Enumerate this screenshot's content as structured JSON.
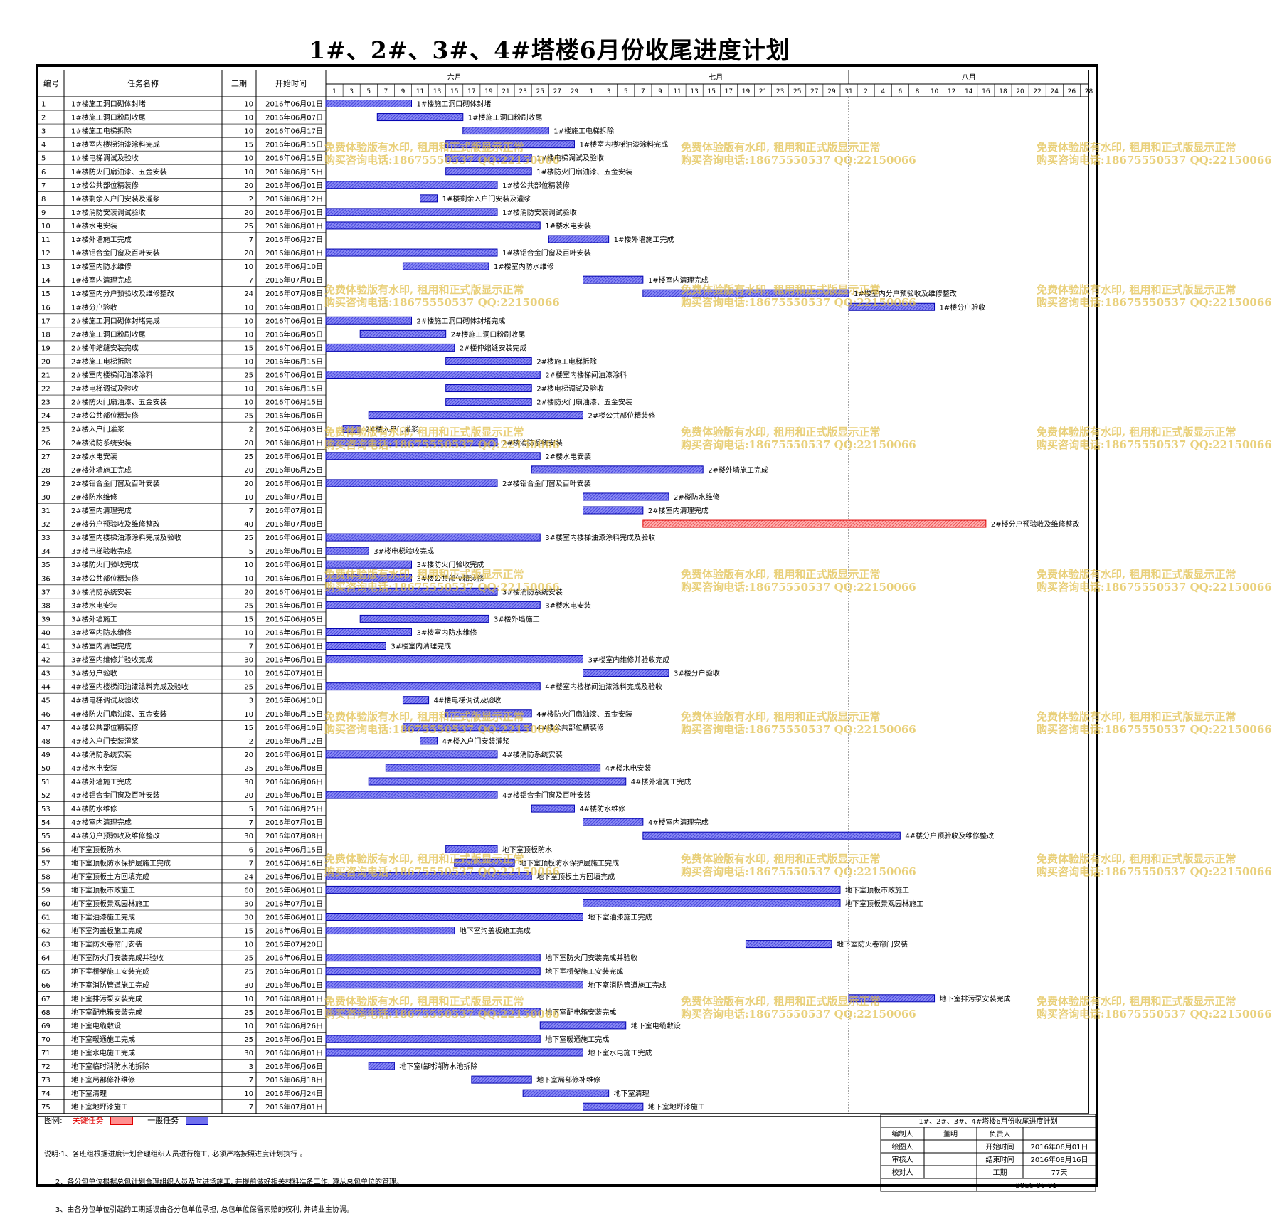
{
  "title": "1#、2#、3#、4#塔楼6月份收尾进度计划",
  "headers": {
    "id": "编号",
    "name": "任务名称",
    "duration": "工期",
    "start": "开始时间"
  },
  "months": [
    "六月",
    "七月",
    "八月"
  ],
  "day_ticks": {
    "june": [
      "1",
      "3",
      "5",
      "7",
      "9",
      "11",
      "13",
      "15",
      "17",
      "19",
      "21",
      "23",
      "25",
      "27",
      "29"
    ],
    "july": [
      "1",
      "3",
      "5",
      "7",
      "9",
      "11",
      "13",
      "15",
      "17",
      "19",
      "21",
      "23",
      "25",
      "27",
      "29",
      "31"
    ],
    "august": [
      "2",
      "4",
      "6",
      "8",
      "10",
      "12",
      "14",
      "16",
      "18",
      "20",
      "22",
      "24",
      "26",
      "28"
    ]
  },
  "chart_data": {
    "type": "gantt",
    "x_axis": {
      "start": "2016-06-01",
      "end": "2016-08-29",
      "unit": "day"
    },
    "critical_color": "#e00000",
    "normal_color": "#4040dd",
    "tasks": [
      {
        "id": "1",
        "name": "1#楼施工洞口砌体封堵",
        "duration": "10",
        "start": "2016年06月01日",
        "critical": false
      },
      {
        "id": "2",
        "name": "1#楼施工洞口粉刷收尾",
        "duration": "10",
        "start": "2016年06月07日",
        "critical": false
      },
      {
        "id": "3",
        "name": "1#楼施工电梯拆除",
        "duration": "10",
        "start": "2016年06月17日",
        "critical": false
      },
      {
        "id": "4",
        "name": "1#楼室内楼梯油漆涂料完成",
        "duration": "15",
        "start": "2016年06月15日",
        "critical": false
      },
      {
        "id": "5",
        "name": "1#楼电梯调试及验收",
        "duration": "10",
        "start": "2016年06月15日",
        "critical": false
      },
      {
        "id": "6",
        "name": "1#楼防火门扇油漆、五金安装",
        "duration": "10",
        "start": "2016年06月15日",
        "critical": false
      },
      {
        "id": "7",
        "name": "1#楼公共部位精装修",
        "duration": "20",
        "start": "2016年06月01日",
        "critical": false
      },
      {
        "id": "8",
        "name": "1#楼剩余入户门安装及灌浆",
        "duration": "2",
        "start": "2016年06月12日",
        "critical": false
      },
      {
        "id": "9",
        "name": "1#楼消防安装调试验收",
        "duration": "20",
        "start": "2016年06月01日",
        "critical": false
      },
      {
        "id": "10",
        "name": "1#楼水电安装",
        "duration": "25",
        "start": "2016年06月01日",
        "critical": false
      },
      {
        "id": "11",
        "name": "1#楼外墙施工完成",
        "duration": "7",
        "start": "2016年06月27日",
        "critical": false
      },
      {
        "id": "12",
        "name": "1#楼铝合金门窗及百叶安装",
        "duration": "20",
        "start": "2016年06月01日",
        "critical": false
      },
      {
        "id": "13",
        "name": "1#楼室内防水维修",
        "duration": "10",
        "start": "2016年06月10日",
        "critical": false
      },
      {
        "id": "14",
        "name": "1#楼室内清理完成",
        "duration": "7",
        "start": "2016年07月01日",
        "critical": false
      },
      {
        "id": "15",
        "name": "1#楼室内分户预验收及维修整改",
        "duration": "24",
        "start": "2016年07月08日",
        "critical": false
      },
      {
        "id": "16",
        "name": "1#楼分户验收",
        "duration": "10",
        "start": "2016年08月01日",
        "critical": false
      },
      {
        "id": "17",
        "name": "2#楼施工洞口砌体封堵完成",
        "duration": "10",
        "start": "2016年06月01日",
        "critical": false
      },
      {
        "id": "18",
        "name": "2#楼施工洞口粉刷收尾",
        "duration": "10",
        "start": "2016年06月05日",
        "critical": false
      },
      {
        "id": "19",
        "name": "2#楼伸缩缝安装完成",
        "duration": "15",
        "start": "2016年06月01日",
        "critical": false
      },
      {
        "id": "20",
        "name": "2#楼施工电梯拆除",
        "duration": "10",
        "start": "2016年06月15日",
        "critical": false
      },
      {
        "id": "21",
        "name": "2#楼室内楼梯间油漆涂料",
        "duration": "25",
        "start": "2016年06月01日",
        "critical": false
      },
      {
        "id": "22",
        "name": "2#楼电梯调试及验收",
        "duration": "10",
        "start": "2016年06月15日",
        "critical": false
      },
      {
        "id": "23",
        "name": "2#楼防火门扇油漆、五金安装",
        "duration": "10",
        "start": "2016年06月15日",
        "critical": false
      },
      {
        "id": "24",
        "name": "2#楼公共部位精装修",
        "duration": "25",
        "start": "2016年06月06日",
        "critical": false
      },
      {
        "id": "25",
        "name": "2#楼入户门灌浆",
        "duration": "2",
        "start": "2016年06月03日",
        "critical": false
      },
      {
        "id": "26",
        "name": "2#楼消防系统安装",
        "duration": "20",
        "start": "2016年06月01日",
        "critical": false
      },
      {
        "id": "27",
        "name": "2#楼水电安装",
        "duration": "25",
        "start": "2016年06月01日",
        "critical": false
      },
      {
        "id": "28",
        "name": "2#楼外墙施工完成",
        "duration": "20",
        "start": "2016年06月25日",
        "critical": false
      },
      {
        "id": "29",
        "name": "2#楼铝合金门窗及百叶安装",
        "duration": "20",
        "start": "2016年06月01日",
        "critical": false
      },
      {
        "id": "30",
        "name": "2#楼防水维修",
        "duration": "10",
        "start": "2016年07月01日",
        "critical": false
      },
      {
        "id": "31",
        "name": "2#楼室内清理完成",
        "duration": "7",
        "start": "2016年07月01日",
        "critical": false
      },
      {
        "id": "32",
        "name": "2#楼分户预验收及维修整改",
        "duration": "40",
        "start": "2016年07月08日",
        "critical": true
      },
      {
        "id": "33",
        "name": "3#楼室内楼梯油漆涂料完成及验收",
        "duration": "25",
        "start": "2016年06月01日",
        "critical": false
      },
      {
        "id": "34",
        "name": "3#楼电梯验收完成",
        "duration": "5",
        "start": "2016年06月01日",
        "critical": false
      },
      {
        "id": "35",
        "name": "3#楼防火门验收完成",
        "duration": "10",
        "start": "2016年06月01日",
        "critical": false
      },
      {
        "id": "36",
        "name": "3#楼公共部位精装修",
        "duration": "10",
        "start": "2016年06月01日",
        "critical": false
      },
      {
        "id": "37",
        "name": "3#楼消防系统安装",
        "duration": "20",
        "start": "2016年06月01日",
        "critical": false
      },
      {
        "id": "38",
        "name": "3#楼水电安装",
        "duration": "25",
        "start": "2016年06月01日",
        "critical": false
      },
      {
        "id": "39",
        "name": "3#楼外墙施工",
        "duration": "15",
        "start": "2016年06月05日",
        "critical": false
      },
      {
        "id": "40",
        "name": "3#楼室内防水维修",
        "duration": "10",
        "start": "2016年06月01日",
        "critical": false
      },
      {
        "id": "41",
        "name": "3#楼室内清理完成",
        "duration": "7",
        "start": "2016年06月01日",
        "critical": false
      },
      {
        "id": "42",
        "name": "3#楼室内维修并验收完成",
        "duration": "30",
        "start": "2016年06月01日",
        "critical": false
      },
      {
        "id": "43",
        "name": "3#楼分户验收",
        "duration": "10",
        "start": "2016年07月01日",
        "critical": false
      },
      {
        "id": "44",
        "name": "4#楼室内楼梯间油漆涂料完成及验收",
        "duration": "25",
        "start": "2016年06月01日",
        "critical": false
      },
      {
        "id": "45",
        "name": "4#楼电梯调试及验收",
        "duration": "3",
        "start": "2016年06月10日",
        "critical": false
      },
      {
        "id": "46",
        "name": "4#楼防火门扇油漆、五金安装",
        "duration": "10",
        "start": "2016年06月15日",
        "critical": false
      },
      {
        "id": "47",
        "name": "4#楼公共部位精装修",
        "duration": "15",
        "start": "2016年06月10日",
        "critical": false
      },
      {
        "id": "48",
        "name": "4#楼入户门安装灌浆",
        "duration": "2",
        "start": "2016年06月12日",
        "critical": false
      },
      {
        "id": "49",
        "name": "4#楼消防系统安装",
        "duration": "20",
        "start": "2016年06月01日",
        "critical": false
      },
      {
        "id": "50",
        "name": "4#楼水电安装",
        "duration": "25",
        "start": "2016年06月08日",
        "critical": false
      },
      {
        "id": "51",
        "name": "4#楼外墙施工完成",
        "duration": "30",
        "start": "2016年06月06日",
        "critical": false
      },
      {
        "id": "52",
        "name": "4#楼铝合金门窗及百叶安装",
        "duration": "20",
        "start": "2016年06月01日",
        "critical": false
      },
      {
        "id": "53",
        "name": "4#楼防水维修",
        "duration": "5",
        "start": "2016年06月25日",
        "critical": false
      },
      {
        "id": "54",
        "name": "4#楼室内清理完成",
        "duration": "7",
        "start": "2016年07月01日",
        "critical": false
      },
      {
        "id": "55",
        "name": "4#楼分户预验收及维修整改",
        "duration": "30",
        "start": "2016年07月08日",
        "critical": false
      },
      {
        "id": "56",
        "name": "地下室顶板防水",
        "duration": "6",
        "start": "2016年06月15日",
        "critical": false
      },
      {
        "id": "57",
        "name": "地下室顶板防水保护层施工完成",
        "duration": "7",
        "start": "2016年06月16日",
        "critical": false
      },
      {
        "id": "58",
        "name": "地下室顶板土方回填完成",
        "duration": "24",
        "start": "2016年06月01日",
        "critical": false
      },
      {
        "id": "59",
        "name": "地下室顶板市政施工",
        "duration": "60",
        "start": "2016年06月01日",
        "critical": false
      },
      {
        "id": "60",
        "name": "地下室顶板景观园林施工",
        "duration": "30",
        "start": "2016年07月01日",
        "critical": false
      },
      {
        "id": "61",
        "name": "地下室油漆施工完成",
        "duration": "30",
        "start": "2016年06月01日",
        "critical": false
      },
      {
        "id": "62",
        "name": "地下室沟盖板施工完成",
        "duration": "15",
        "start": "2016年06月01日",
        "critical": false
      },
      {
        "id": "63",
        "name": "地下室防火卷帘门安装",
        "duration": "10",
        "start": "2016年07月20日",
        "critical": false
      },
      {
        "id": "64",
        "name": "地下室防火门安装完成并验收",
        "duration": "25",
        "start": "2016年06月01日",
        "critical": false
      },
      {
        "id": "65",
        "name": "地下室桥架施工安装完成",
        "duration": "25",
        "start": "2016年06月01日",
        "critical": false
      },
      {
        "id": "66",
        "name": "地下室消防管道施工完成",
        "duration": "30",
        "start": "2016年06月01日",
        "critical": false
      },
      {
        "id": "67",
        "name": "地下室排污泵安装完成",
        "duration": "10",
        "start": "2016年08月01日",
        "critical": false
      },
      {
        "id": "68",
        "name": "地下室配电箱安装完成",
        "duration": "25",
        "start": "2016年06月01日",
        "critical": false
      },
      {
        "id": "69",
        "name": "地下室电缆敷设",
        "duration": "10",
        "start": "2016年06月26日",
        "critical": false
      },
      {
        "id": "70",
        "name": "地下室暖通施工完成",
        "duration": "25",
        "start": "2016年06月01日",
        "critical": false
      },
      {
        "id": "71",
        "name": "地下室水电施工完成",
        "duration": "30",
        "start": "2016年06月01日",
        "critical": false
      },
      {
        "id": "72",
        "name": "地下室临时消防水池拆除",
        "duration": "3",
        "start": "2016年06月06日",
        "critical": false
      },
      {
        "id": "73",
        "name": "地下室局部修补维修",
        "duration": "7",
        "start": "2016年06月18日",
        "critical": false
      },
      {
        "id": "74",
        "name": "地下室清理",
        "duration": "10",
        "start": "2016年06月24日",
        "critical": false
      },
      {
        "id": "75",
        "name": "地下室地坪漆施工",
        "duration": "7",
        "start": "2016年07月01日",
        "critical": false
      }
    ]
  },
  "legend": {
    "label": "图例:",
    "critical": "关键任务",
    "normal": "一般任务"
  },
  "notes": [
    "说明:1、各班组根据进度计划合理组织人员进行施工, 必须严格按照进度计划执行 。",
    "     2、各分包单位根据总包计划合理组织人员及时进场施工, 并提前做好相关材料准备工作, 遵从总包单位的管理。",
    "     3、由各分包单位引起的工期延误由各分包单位承担, 总包单位保留索赔的权利, 并请业主协调。"
  ],
  "titleblock": {
    "title": "1#、2#、3#、4#塔楼6月份收尾进度计划",
    "compiler_label": "编制人",
    "compiler": "董明",
    "leader_label": "负责人",
    "leader": "",
    "drawer_label": "绘图人",
    "drawer": "",
    "start_label": "开始时间",
    "start": "2016年06月01日",
    "reviewer_label": "审核人",
    "reviewer": "",
    "end_label": "结束时间",
    "end": "2016年08月16日",
    "checker_label": "校对人",
    "checker": "",
    "duration_label": "工期",
    "duration": "77天",
    "date": "2016-06-01"
  },
  "watermark": {
    "line1": "免费体验版有水印, 租用和正式版显示正常",
    "line2": "购买咨询电话:18675550537 QQ:22150066"
  }
}
